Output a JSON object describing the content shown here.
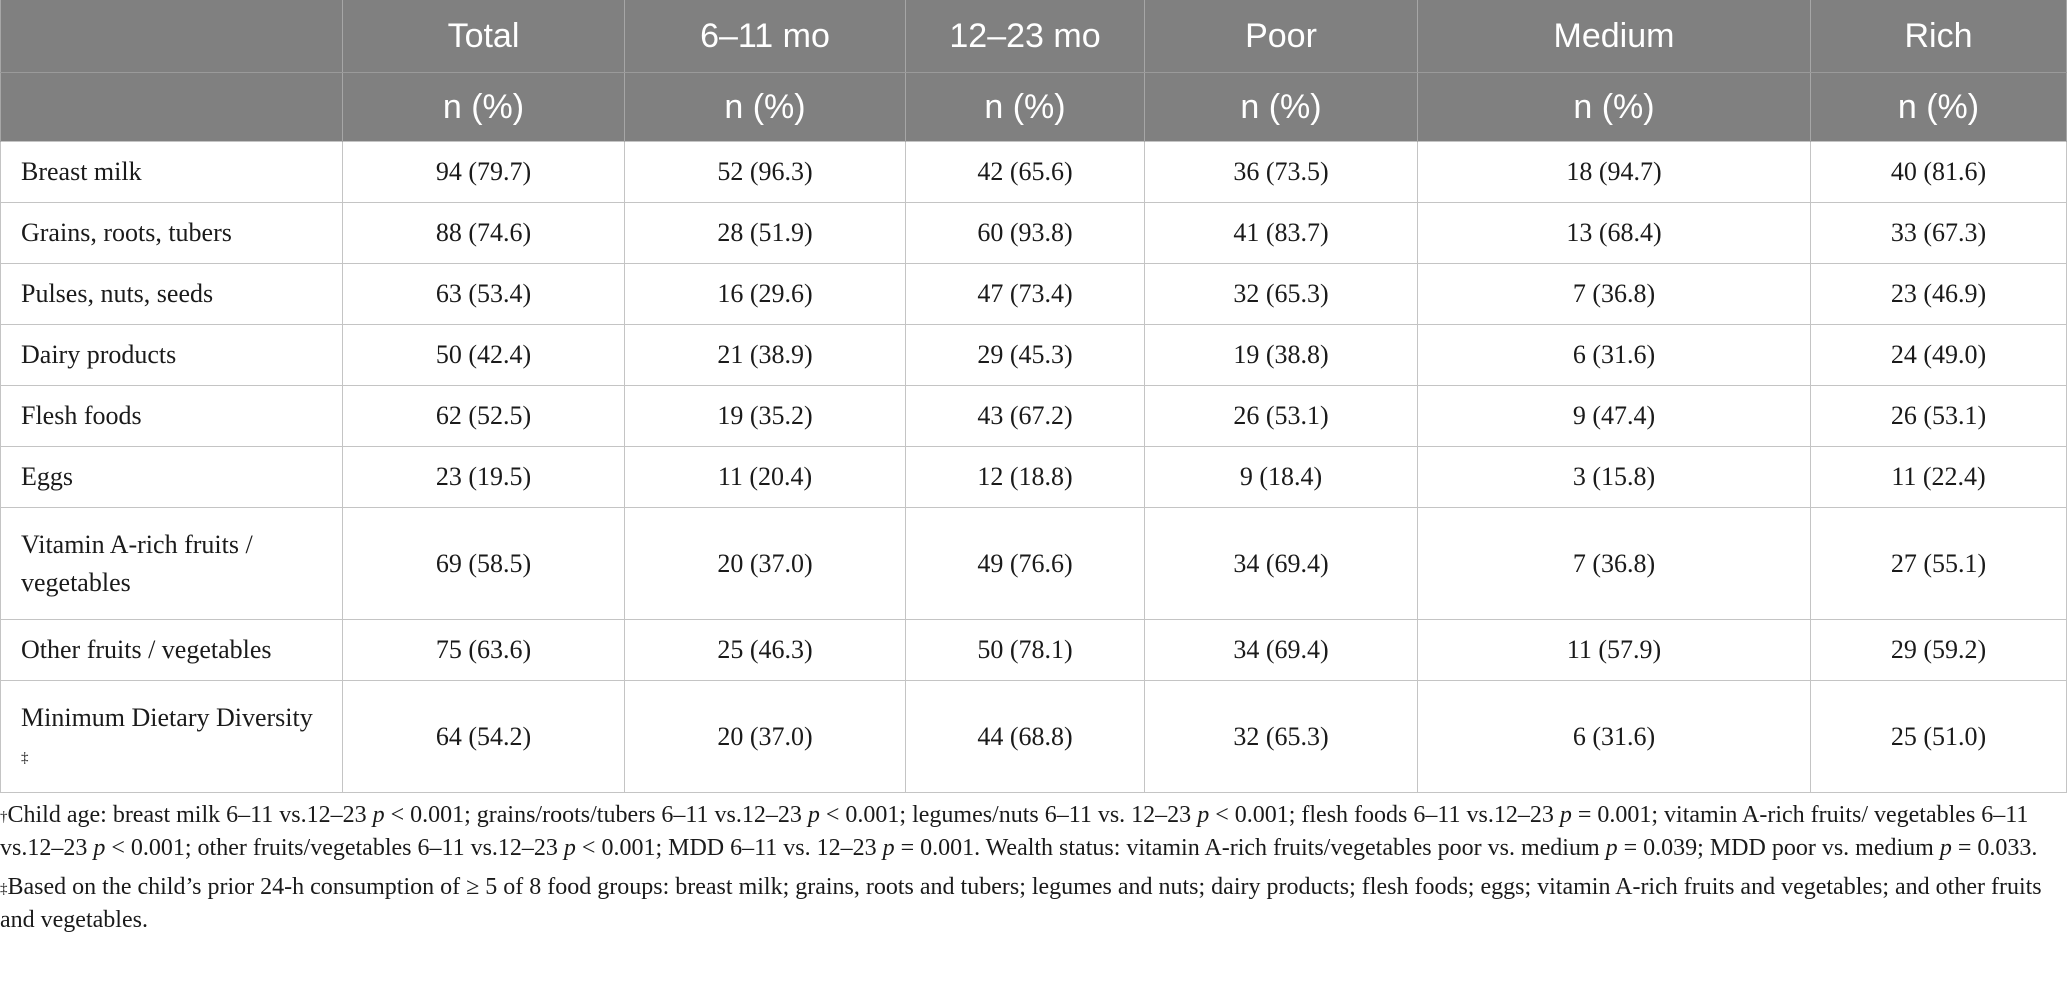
{
  "table": {
    "header_top": [
      "",
      "Total",
      "6–11 mo",
      "12–23 mo",
      "Poor",
      "Medium",
      "Rich"
    ],
    "header_sub": [
      "",
      "n (%)",
      "n (%)",
      "n (%)",
      "n (%)",
      "n (%)",
      "n (%)"
    ],
    "rows": [
      {
        "label": "Breast milk",
        "values": [
          "94 (79.7)",
          "52 (96.3)",
          "42 (65.6)",
          "36 (73.5)",
          "18 (94.7)",
          "40 (81.6)"
        ]
      },
      {
        "label": "Grains, roots, tubers",
        "values": [
          "88 (74.6)",
          "28 (51.9)",
          "60 (93.8)",
          "41 (83.7)",
          "13 (68.4)",
          "33 (67.3)"
        ]
      },
      {
        "label": "Pulses, nuts, seeds",
        "values": [
          "63 (53.4)",
          "16 (29.6)",
          "47 (73.4)",
          "32 (65.3)",
          "7 (36.8)",
          "23 (46.9)"
        ]
      },
      {
        "label": "Dairy products",
        "values": [
          "50 (42.4)",
          "21 (38.9)",
          "29 (45.3)",
          "19 (38.8)",
          "6 (31.6)",
          "24 (49.0)"
        ]
      },
      {
        "label": "Flesh foods",
        "values": [
          "62 (52.5)",
          "19 (35.2)",
          "43 (67.2)",
          "26 (53.1)",
          "9 (47.4)",
          "26 (53.1)"
        ]
      },
      {
        "label": "Eggs",
        "values": [
          "23 (19.5)",
          "11 (20.4)",
          "12 (18.8)",
          "9 (18.4)",
          "3 (15.8)",
          "11 (22.4)"
        ]
      },
      {
        "label": "Vitamin A-rich fruits / vegetables",
        "values": [
          "69 (58.5)",
          "20 (37.0)",
          "49 (76.6)",
          "34 (69.4)",
          "7 (36.8)",
          "27 (55.1)"
        ]
      },
      {
        "label": "Other fruits / vegetables",
        "values": [
          "75 (63.6)",
          "25 (46.3)",
          "50 (78.1)",
          "34 (69.4)",
          "11 (57.9)",
          "29 (59.2)"
        ]
      },
      {
        "label": "Minimum Dietary Diversity",
        "label_marker": "‡",
        "values": [
          "64 (54.2)",
          "20 (37.0)",
          "44 (68.8)",
          "32 (65.3)",
          "6 (31.6)",
          "25 (51.0)"
        ]
      }
    ]
  },
  "footnotes": {
    "dagger": {
      "marker": "†",
      "parts": [
        {
          "t": "Child age: breast milk 6–11 vs.12–23 "
        },
        {
          "t": "p",
          "i": true
        },
        {
          "t": " < 0.001; grains/roots/tubers 6–11 vs.12–23 "
        },
        {
          "t": "p",
          "i": true
        },
        {
          "t": " < 0.001; legumes/nuts 6–11 vs. 12–23 "
        },
        {
          "t": "p",
          "i": true
        },
        {
          "t": " < 0.001; flesh foods 6–11 vs.12–23 "
        },
        {
          "t": "p",
          "i": true
        },
        {
          "t": " = 0.001; vitamin A-rich fruits/ vegetables 6–11 vs.12–23 "
        },
        {
          "t": "p",
          "i": true
        },
        {
          "t": " < 0.001; other fruits/vegetables 6–11 vs.12–23 "
        },
        {
          "t": "p",
          "i": true
        },
        {
          "t": " < 0.001; MDD 6–11 vs. 12–23 "
        },
        {
          "t": "p",
          "i": true
        },
        {
          "t": " = 0.001. Wealth status: vitamin A-rich fruits/vegetables poor vs. medium "
        },
        {
          "t": "p",
          "i": true
        },
        {
          "t": " = 0.039; MDD poor vs. medium "
        },
        {
          "t": "p",
          "i": true
        },
        {
          "t": " = 0.033."
        }
      ]
    },
    "ddagger": {
      "marker": "‡",
      "parts": [
        {
          "t": "Based on the child’s prior 24-h consumption of ≥ 5 of 8 food groups: breast milk; grains, roots and tubers; legumes and nuts; dairy products; flesh foods; eggs; vitamin A-rich fruits and vegetables; and other fruits and vegetables."
        }
      ]
    }
  }
}
